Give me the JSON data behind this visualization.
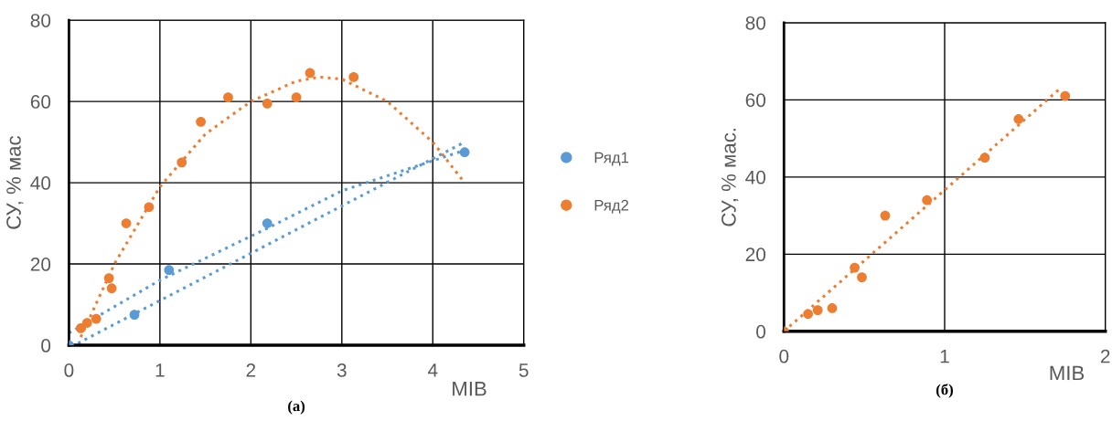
{
  "chart_data": [
    {
      "type": "scatter",
      "xlabel": "МІВ",
      "ylabel": "СУ, % мас",
      "xlim": [
        0,
        5
      ],
      "ylim": [
        0,
        80
      ],
      "xticks": [
        0,
        1,
        2,
        3,
        4,
        5
      ],
      "yticks": [
        0,
        20,
        40,
        60,
        80
      ],
      "grid": true,
      "legend": "right",
      "marker": "circle",
      "annotations": [
        "(a)"
      ],
      "series": [
        {
          "name": "Ряд1",
          "color": "#5b9bd5",
          "x": [
            0,
            0.72,
            1.1,
            2.18,
            4.35
          ],
          "values": [
            0,
            7.5,
            18.5,
            30,
            47.5
          ]
        },
        {
          "name": "Ряд2",
          "color": "#ed7d31",
          "x": [
            0.13,
            0.2,
            0.3,
            0.44,
            0.47,
            0.63,
            0.88,
            1.24,
            1.45,
            1.75,
            2.18,
            2.5,
            2.65,
            3.13
          ],
          "values": [
            4.2,
            5.5,
            6.5,
            16.5,
            14,
            30,
            34,
            45,
            55,
            61,
            59.5,
            61,
            67,
            66
          ]
        },
        {
          "type": "line",
          "line_style": "dotted",
          "marker": "none",
          "color": "#5b9bd5",
          "x": [
            0,
            1,
            2.2,
            3,
            4.35
          ],
          "values": [
            3,
            16,
            29,
            38,
            48
          ]
        },
        {
          "type": "line",
          "line_style": "dotted",
          "marker": "none",
          "color": "#5b9bd5",
          "x": [
            0.1,
            4.35
          ],
          "values": [
            0.5,
            50
          ]
        },
        {
          "type": "line",
          "line_style": "dotted",
          "marker": "none",
          "color": "#ed7d31",
          "x": [
            0.13,
            0.5,
            1,
            1.5,
            2,
            2.5,
            2.75,
            3,
            3.5,
            4,
            4.35
          ],
          "values": [
            2,
            20,
            39,
            52,
            60,
            65,
            66,
            65.5,
            60,
            50,
            40
          ]
        }
      ]
    },
    {
      "type": "scatter",
      "xlabel": "МІВ",
      "ylabel": "СУ, % мас.",
      "xlim": [
        0,
        2
      ],
      "ylim": [
        0,
        80
      ],
      "xticks": [
        0,
        1,
        2
      ],
      "yticks": [
        0,
        20,
        40,
        60,
        80
      ],
      "grid": true,
      "marker": "circle",
      "annotations": [
        "(б)"
      ],
      "series": [
        {
          "color": "#ed7d31",
          "x": [
            0,
            0.15,
            0.21,
            0.3,
            0.44,
            0.485,
            0.63,
            0.89,
            1.25,
            1.46,
            1.75
          ],
          "values": [
            0,
            4.5,
            5.5,
            6,
            16.5,
            14,
            30,
            34,
            45,
            55,
            61
          ]
        },
        {
          "type": "line",
          "line_style": "dotted",
          "marker": "none",
          "color": "#ed7d31",
          "x": [
            0,
            1.72
          ],
          "values": [
            0,
            63
          ]
        }
      ]
    }
  ]
}
